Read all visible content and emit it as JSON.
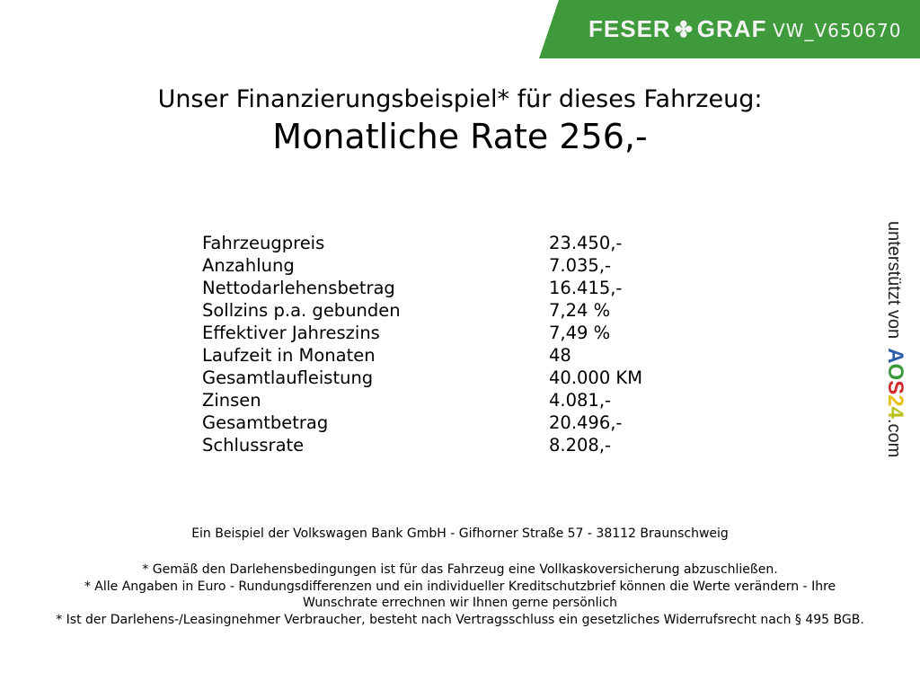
{
  "header": {
    "logo_text": "FESER ✤ GRAF",
    "vehicle_id": "VW_V650670",
    "brand_color": "#3f9a3c"
  },
  "title": "Unser Finanzierungsbeispiel* für dieses Fahrzeug:",
  "rate": "Monatliche Rate 256,-",
  "rows": [
    {
      "label": "Fahrzeugpreis",
      "value": "23.450,-"
    },
    {
      "label": "Anzahlung",
      "value": "7.035,-"
    },
    {
      "label": "Nettodarlehensbetrag",
      "value": "16.415,-"
    },
    {
      "label": "Sollzins p.a. gebunden",
      "value": "7,24 %"
    },
    {
      "label": "Effektiver Jahreszins",
      "value": "7,49 %"
    },
    {
      "label": "Laufzeit in Monaten",
      "value": "48"
    },
    {
      "label": "Gesamtlaufleistung",
      "value": "40.000 KM"
    },
    {
      "label": "Zinsen",
      "value": "4.081,-"
    },
    {
      "label": "Gesamtbetrag",
      "value": "20.496,-"
    },
    {
      "label": "Schlussrate",
      "value": "8.208,-"
    }
  ],
  "bank": "Ein Beispiel der Volkswagen Bank GmbH - Gifhorner Straße 57 - 38112 Braunschweig",
  "notes": [
    "* Gemäß den Darlehensbedingungen ist für das Fahrzeug eine Vollkaskoversicherung abzuschließen.",
    "* Alle Angaben in Euro - Rundungsdifferenzen und ein individueller Kreditschutzbrief können die Werte verändern - Ihre Wunschrate errechnen wir Ihnen gerne persönlich",
    "* Ist der Darlehens-/Leasingnehmer Verbraucher, besteht nach Vertragsschluss ein gesetzliches Widerrufsrecht nach § 495 BGB."
  ],
  "side": {
    "prefix": "unterstützt von",
    "brand": [
      "A",
      "O",
      "S",
      "2",
      "4"
    ],
    "brand_colors": [
      "#2f5fa8",
      "#3a9a3a",
      "#d02a2a",
      "#e8c21a",
      "#b8c21a"
    ],
    "suffix": ".com"
  }
}
